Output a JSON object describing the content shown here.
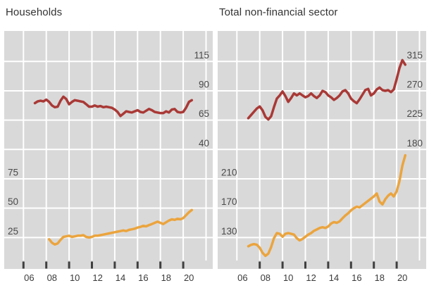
{
  "page": {
    "background": "#ffffff"
  },
  "colors": {
    "panel_background": "#d9d9d9",
    "gridline": "#ffffff",
    "tick": "#3f3f3f",
    "axis_label": "#4a4a4a",
    "x_label": "#3a3a3a",
    "title": "#333333",
    "red_series": "#a93936",
    "orange_series": "#eba43d"
  },
  "chart_data": [
    {
      "type": "line",
      "title": "Households",
      "x_labels": [
        "06",
        "08",
        "10",
        "12",
        "14",
        "16",
        "18",
        "20"
      ],
      "x_label_years": [
        2006,
        2008,
        2010,
        2012,
        2014,
        2016,
        2018,
        2020
      ],
      "x_tick_years": [
        2006,
        2008,
        2010,
        2012,
        2014,
        2016,
        2018,
        2020
      ],
      "grid": true,
      "top_axis": {
        "side": "right",
        "ticks": [
          115,
          90,
          65,
          40
        ]
      },
      "bottom_axis": {
        "side": "left",
        "ticks": [
          75,
          50,
          25
        ]
      },
      "series": [
        {
          "name": "households-top-line",
          "color": "#a93936",
          "axis": "top",
          "start_year": 2007.0,
          "step_years": 0.25,
          "values": [
            79.5,
            81,
            81.5,
            81,
            82.5,
            80.5,
            77.5,
            76,
            76.5,
            81.5,
            85,
            83,
            78.5,
            80.5,
            82,
            81.5,
            81,
            80.5,
            78.5,
            76.5,
            76.5,
            77.5,
            76.5,
            77,
            76,
            76.5,
            76,
            75.5,
            74,
            72,
            68.5,
            70.5,
            72.5,
            72,
            71.5,
            72.5,
            73.5,
            72,
            71.5,
            73,
            74.5,
            73.5,
            72,
            71.5,
            71,
            71,
            72.5,
            71.5,
            74,
            74.5,
            72,
            71.5,
            72,
            75.5,
            80.5,
            82
          ]
        },
        {
          "name": "households-bottom-line",
          "color": "#eba43d",
          "axis": "bottom",
          "start_year": 2008.25,
          "step_years": 0.25,
          "values": [
            23.5,
            20.5,
            19,
            20,
            23,
            25.5,
            26,
            26.5,
            25.5,
            26,
            26.5,
            26.5,
            27,
            25.5,
            25,
            25.5,
            26.5,
            26.5,
            27,
            27.5,
            28,
            28.5,
            29,
            29.5,
            30,
            30.5,
            31,
            30.5,
            31.5,
            32,
            32.5,
            33.5,
            34,
            35,
            34.5,
            35.5,
            36.5,
            37.5,
            38.5,
            37.5,
            36.5,
            38,
            39.5,
            40.5,
            40,
            41,
            40.5,
            41.5,
            44,
            46.5,
            48.5
          ]
        }
      ]
    },
    {
      "type": "line",
      "title": "Total non-financial sector",
      "x_labels": [
        "06",
        "08",
        "10",
        "12",
        "14",
        "16",
        "18",
        "20"
      ],
      "x_label_years": [
        2006,
        2008,
        2010,
        2012,
        2014,
        2016,
        2018,
        2020
      ],
      "x_tick_years": [
        2008,
        2010,
        2012,
        2014,
        2016,
        2018,
        2020
      ],
      "grid": true,
      "top_axis": {
        "side": "right",
        "ticks": [
          315,
          270,
          225,
          180
        ]
      },
      "bottom_axis": {
        "side": "left",
        "ticks": [
          210,
          170,
          130
        ]
      },
      "series": [
        {
          "name": "total-top-line",
          "color": "#a93936",
          "axis": "top",
          "start_year": 2007.0,
          "step_years": 0.25,
          "values": [
            228,
            233,
            238,
            243,
            246,
            240,
            230,
            226,
            231,
            245,
            258,
            263,
            269,
            262,
            253,
            259,
            266,
            263,
            266,
            263,
            260,
            262,
            266,
            262,
            259,
            263,
            270,
            268,
            263,
            260,
            256,
            259,
            263,
            269,
            271,
            266,
            258,
            254,
            251,
            257,
            264,
            271,
            273,
            263,
            266,
            272,
            275,
            271,
            270,
            271,
            268,
            272,
            288,
            305,
            317,
            310
          ]
        },
        {
          "name": "total-bottom-line",
          "color": "#eba43d",
          "axis": "bottom",
          "start_year": 2007.0,
          "step_years": 0.25,
          "values": [
            118,
            120,
            121,
            120,
            116,
            109,
            105,
            108,
            117,
            129,
            136,
            135,
            131,
            135,
            136,
            135,
            134,
            129,
            126,
            128,
            131,
            134,
            136,
            139,
            141,
            143,
            144,
            143,
            145,
            149,
            151,
            150,
            152,
            156,
            160,
            163,
            167,
            170,
            172,
            171,
            174,
            177,
            180,
            183,
            186,
            190,
            179,
            175,
            182,
            187,
            190,
            186,
            193,
            207,
            228,
            242
          ]
        }
      ]
    }
  ]
}
